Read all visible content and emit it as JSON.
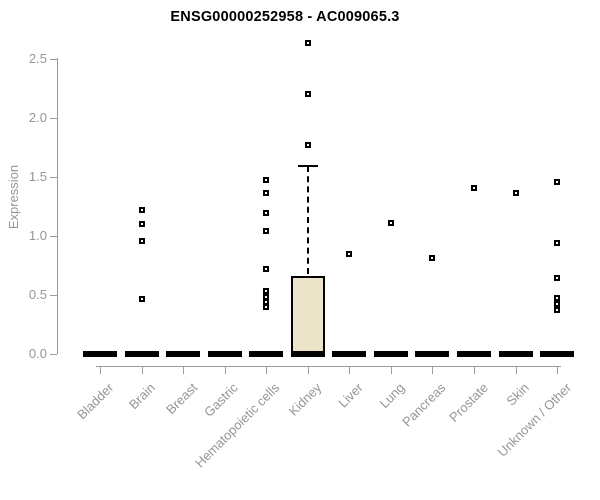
{
  "chart_data": {
    "type": "boxplot",
    "title": "ENSG00000252958 - AC009065.3",
    "ylabel": "Expression",
    "xlabel": "",
    "ylim": [
      0.0,
      2.5
    ],
    "yticks": [
      0.0,
      0.5,
      1.0,
      1.5,
      2.0,
      2.5
    ],
    "ytick_labels": [
      "0.0",
      "0.5",
      "1.0",
      "1.5",
      "2.0",
      "2.5"
    ],
    "grid": false,
    "legend": null,
    "categories": [
      "Bladder",
      "Brain",
      "Breast",
      "Gastric",
      "Hematopoietic cells",
      "Kidney",
      "Liver",
      "Lung",
      "Pancreas",
      "Prostate",
      "Skin",
      "Unknown / Other"
    ],
    "boxes": [
      {
        "category": "Bladder",
        "q1": 0,
        "median": 0,
        "q3": 0,
        "whisker_low": 0,
        "whisker_high": 0,
        "outliers": []
      },
      {
        "category": "Brain",
        "q1": 0,
        "median": 0,
        "q3": 0,
        "whisker_low": 0,
        "whisker_high": 0,
        "outliers": [
          1.22,
          1.1,
          0.95,
          0.46
        ]
      },
      {
        "category": "Breast",
        "q1": 0,
        "median": 0,
        "q3": 0,
        "whisker_low": 0,
        "whisker_high": 0,
        "outliers": []
      },
      {
        "category": "Gastric",
        "q1": 0,
        "median": 0,
        "q3": 0,
        "whisker_low": 0,
        "whisker_high": 0,
        "outliers": []
      },
      {
        "category": "Hematopoietic cells",
        "q1": 0,
        "median": 0,
        "q3": 0,
        "whisker_low": 0,
        "whisker_high": 0,
        "outliers": [
          1.47,
          1.36,
          1.19,
          1.04,
          0.72,
          0.53,
          0.48,
          0.44,
          0.39
        ]
      },
      {
        "category": "Kidney",
        "q1": 0,
        "median": 0,
        "q3": 0.66,
        "whisker_low": 0,
        "whisker_high": 1.59,
        "outliers": [
          2.63,
          2.2,
          1.77
        ]
      },
      {
        "category": "Liver",
        "q1": 0,
        "median": 0,
        "q3": 0,
        "whisker_low": 0,
        "whisker_high": 0,
        "outliers": [
          0.84
        ]
      },
      {
        "category": "Lung",
        "q1": 0,
        "median": 0,
        "q3": 0,
        "whisker_low": 0,
        "whisker_high": 0,
        "outliers": [
          1.11
        ]
      },
      {
        "category": "Pancreas",
        "q1": 0,
        "median": 0,
        "q3": 0,
        "whisker_low": 0,
        "whisker_high": 0,
        "outliers": [
          0.81
        ]
      },
      {
        "category": "Prostate",
        "q1": 0,
        "median": 0,
        "q3": 0,
        "whisker_low": 0,
        "whisker_high": 0,
        "outliers": [
          1.4
        ]
      },
      {
        "category": "Skin",
        "q1": 0,
        "median": 0,
        "q3": 0,
        "whisker_low": 0,
        "whisker_high": 0,
        "outliers": [
          1.36
        ]
      },
      {
        "category": "Unknown / Other",
        "q1": 0,
        "median": 0,
        "q3": 0,
        "whisker_low": 0,
        "whisker_high": 0,
        "outliers": [
          1.45,
          0.94,
          0.64,
          0.47,
          0.42,
          0.37
        ]
      }
    ]
  },
  "colors": {
    "background": "#FFFFFF",
    "title_text": "#000000",
    "axis_text": "#969696",
    "axis_line": "#9B9B9B",
    "box_fill": "#ECE4C9",
    "marks": "#000000"
  }
}
